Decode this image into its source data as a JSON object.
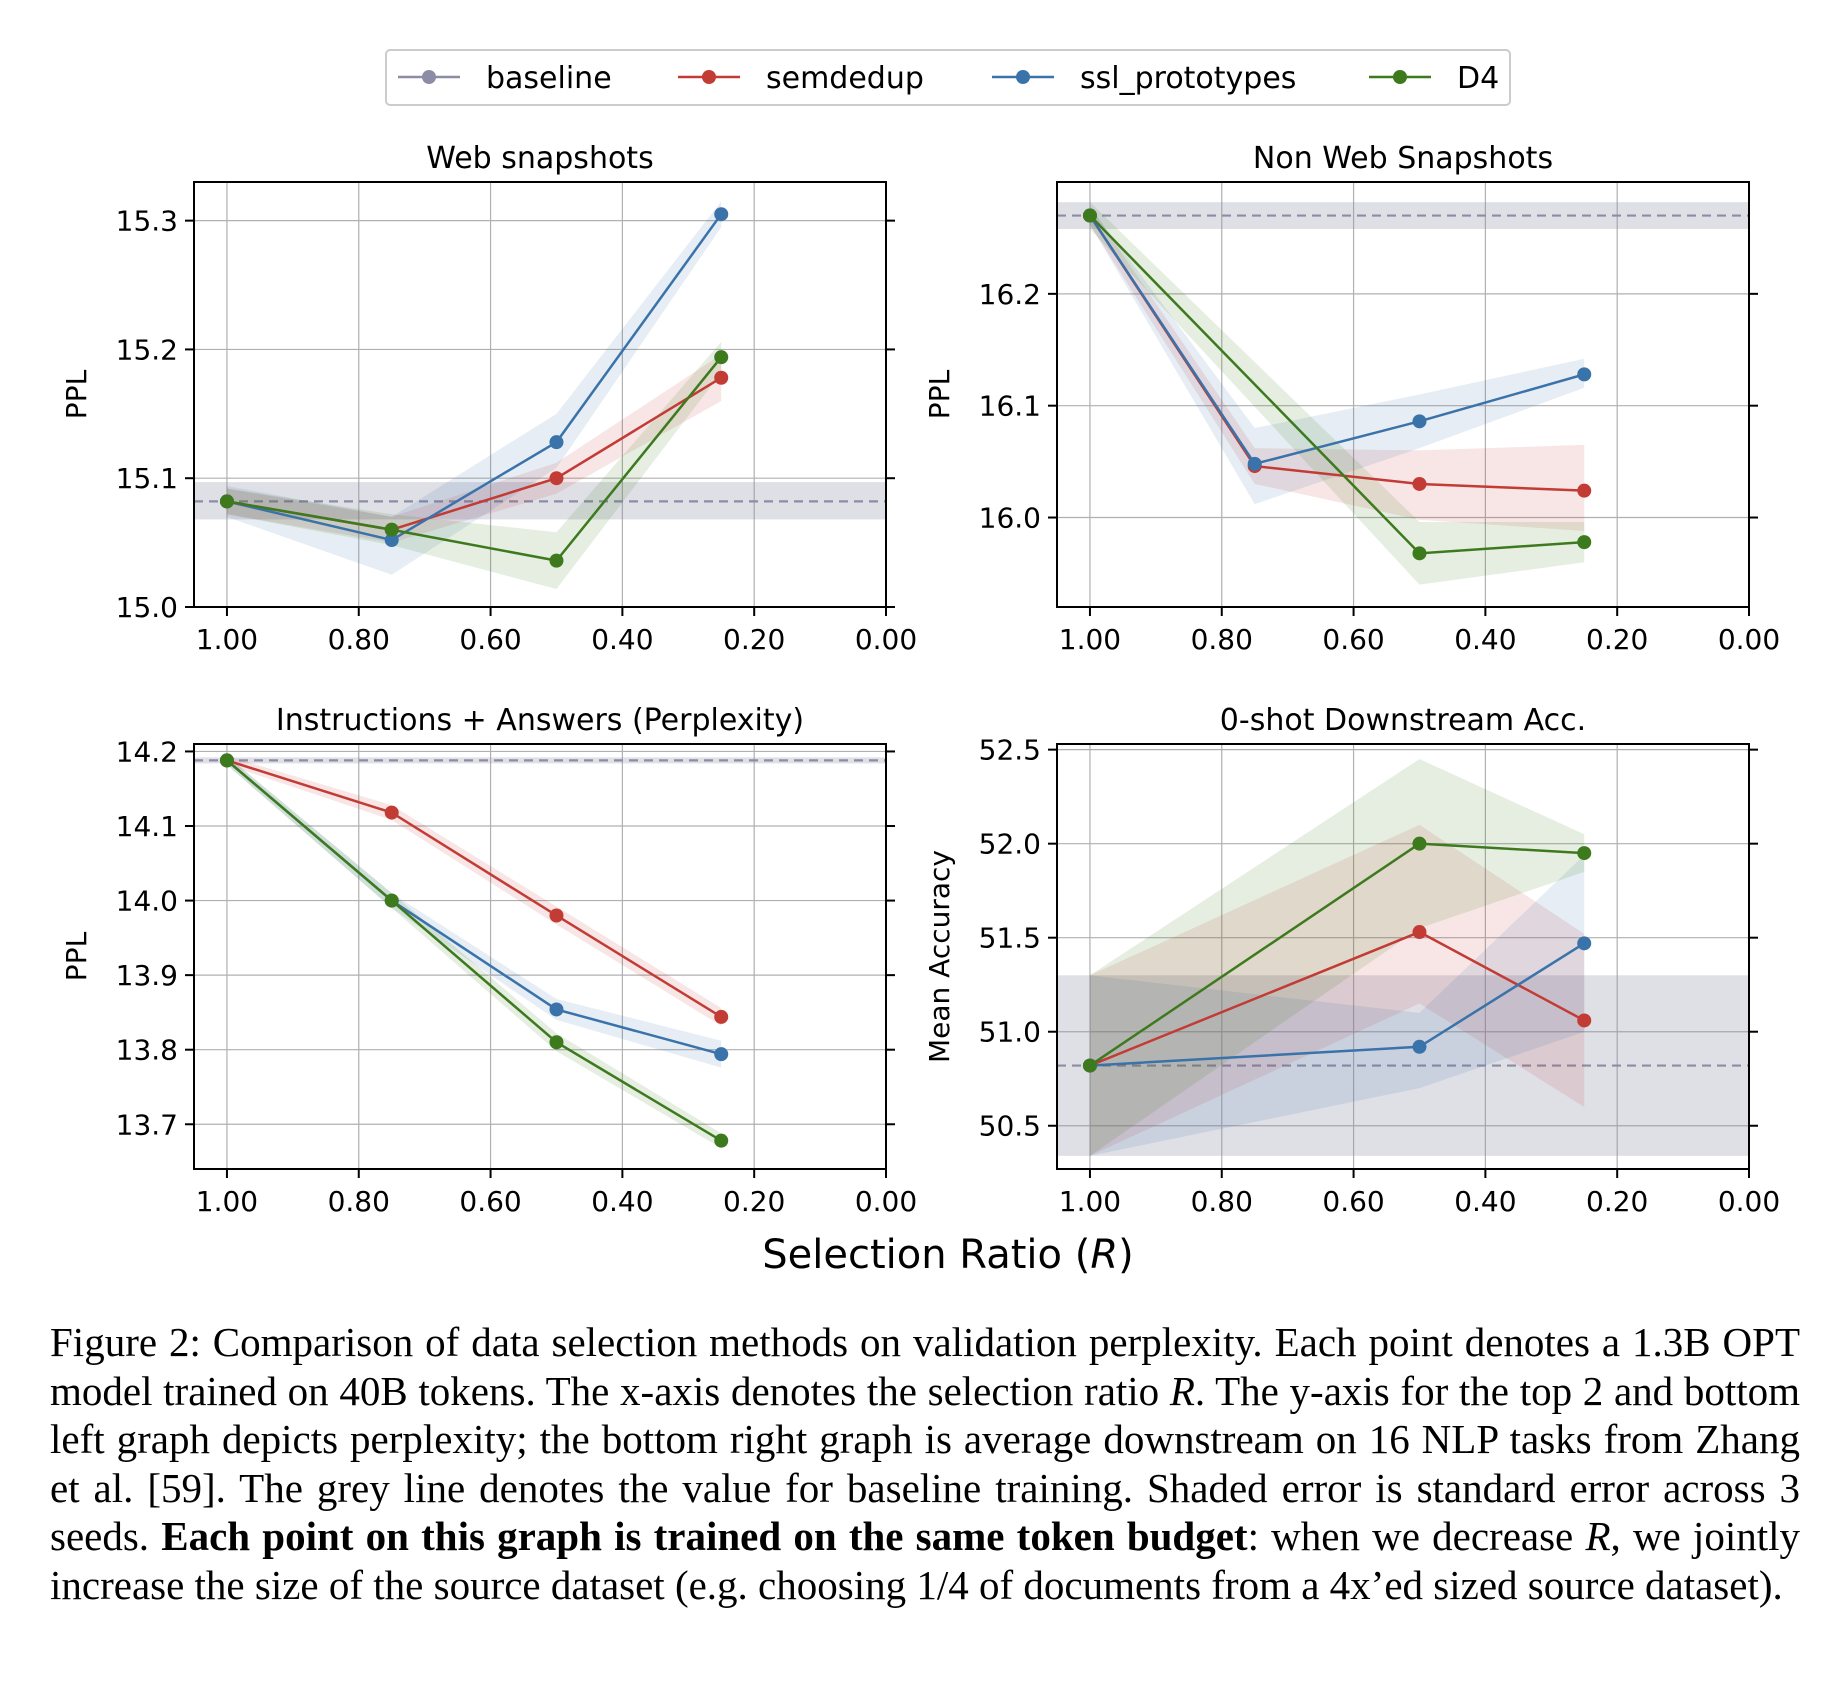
{
  "legend": [
    {
      "name": "baseline",
      "color": "#8c8ca6"
    },
    {
      "name": "semdedup",
      "color": "#c23b35"
    },
    {
      "name": "ssl_prototypes",
      "color": "#3a72aa"
    },
    {
      "name": "D4",
      "color": "#3d7a1e"
    }
  ],
  "xlabel_prefix": "Selection Ratio (",
  "xlabel_var": "R",
  "xlabel_suffix": ")",
  "chart_data": [
    {
      "type": "line",
      "title": "Web snapshots",
      "xlabel": "Selection Ratio (R)",
      "ylabel": "PPL",
      "xlim": [
        1.05,
        0.0
      ],
      "ylim": [
        15.0,
        15.33
      ],
      "xticks": [
        1.0,
        0.8,
        0.6,
        0.4,
        0.2,
        0.0
      ],
      "xtick_labels": [
        "1.00",
        "0.80",
        "0.60",
        "0.40",
        "0.20",
        "0.00"
      ],
      "yticks": [
        15.0,
        15.1,
        15.2,
        15.3
      ],
      "ytick_labels": [
        "15.0",
        "15.1",
        "15.2",
        "15.3"
      ],
      "baseline": {
        "value": 15.082,
        "band": [
          15.068,
          15.097
        ]
      },
      "x": [
        1.0,
        0.75,
        0.5,
        0.25
      ],
      "series": [
        {
          "name": "semdedup",
          "values": [
            15.082,
            15.06,
            15.1,
            15.178
          ],
          "lo": [
            15.072,
            15.05,
            15.088,
            15.16
          ],
          "hi": [
            15.092,
            15.07,
            15.112,
            15.196
          ]
        },
        {
          "name": "ssl_prototypes",
          "values": [
            15.082,
            15.052,
            15.128,
            15.305
          ],
          "lo": [
            15.07,
            15.025,
            15.108,
            15.295
          ],
          "hi": [
            15.094,
            15.07,
            15.15,
            15.315
          ]
        },
        {
          "name": "D4",
          "values": [
            15.082,
            15.06,
            15.036,
            15.194
          ],
          "lo": [
            15.072,
            15.048,
            15.014,
            15.182
          ],
          "hi": [
            15.092,
            15.072,
            15.058,
            15.206
          ]
        }
      ]
    },
    {
      "type": "line",
      "title": "Non Web Snapshots",
      "xlabel": "Selection Ratio (R)",
      "ylabel": "PPL",
      "xlim": [
        1.05,
        0.0
      ],
      "ylim": [
        15.92,
        16.3
      ],
      "xticks": [
        1.0,
        0.8,
        0.6,
        0.4,
        0.2,
        0.0
      ],
      "xtick_labels": [
        "1.00",
        "0.80",
        "0.60",
        "0.40",
        "0.20",
        "0.00"
      ],
      "yticks": [
        16.0,
        16.1,
        16.2
      ],
      "ytick_labels": [
        "16.0",
        "16.1",
        "16.2"
      ],
      "baseline": {
        "value": 16.27,
        "band": [
          16.258,
          16.282
        ]
      },
      "x": [
        1.0,
        0.75,
        0.5,
        0.25
      ],
      "series": [
        {
          "name": "semdedup",
          "values": [
            16.27,
            16.046,
            16.03,
            16.024
          ],
          "lo": [
            16.262,
            16.03,
            15.998,
            15.988
          ],
          "hi": [
            16.278,
            16.062,
            16.06,
            16.065
          ]
        },
        {
          "name": "ssl_prototypes",
          "values": [
            16.27,
            16.048,
            16.086,
            16.128
          ],
          "lo": [
            16.262,
            16.012,
            16.062,
            16.116
          ],
          "hi": [
            16.278,
            16.08,
            16.11,
            16.142
          ]
        },
        {
          "name": "D4",
          "values": [
            16.27,
            null,
            15.968,
            15.978
          ],
          "lo": [
            16.258,
            null,
            15.94,
            15.96
          ],
          "hi": [
            16.282,
            null,
            15.996,
            15.996
          ]
        }
      ]
    },
    {
      "type": "line",
      "title": "Instructions + Answers (Perplexity)",
      "xlabel": "Selection Ratio (R)",
      "ylabel": "PPL",
      "xlim": [
        1.05,
        0.0
      ],
      "ylim": [
        13.64,
        14.21
      ],
      "xticks": [
        1.0,
        0.8,
        0.6,
        0.4,
        0.2,
        0.0
      ],
      "xtick_labels": [
        "1.00",
        "0.80",
        "0.60",
        "0.40",
        "0.20",
        "0.00"
      ],
      "yticks": [
        13.7,
        13.8,
        13.9,
        14.0,
        14.1,
        14.2
      ],
      "ytick_labels": [
        "13.7",
        "13.8",
        "13.9",
        "14.0",
        "14.1",
        "14.2"
      ],
      "baseline": {
        "value": 14.188,
        "band": [
          14.184,
          14.192
        ]
      },
      "x": [
        1.0,
        0.75,
        0.5,
        0.25
      ],
      "series": [
        {
          "name": "semdedup",
          "values": [
            14.188,
            14.118,
            13.98,
            13.844
          ],
          "lo": [
            14.182,
            14.108,
            13.968,
            13.832
          ],
          "hi": [
            14.194,
            14.128,
            13.992,
            13.856
          ]
        },
        {
          "name": "ssl_prototypes",
          "values": [
            14.188,
            14.0,
            13.854,
            13.794
          ],
          "lo": [
            14.182,
            13.99,
            13.84,
            13.776
          ],
          "hi": [
            14.194,
            14.01,
            13.868,
            13.812
          ]
        },
        {
          "name": "D4",
          "values": [
            14.188,
            14.0,
            13.81,
            13.678
          ],
          "lo": [
            14.182,
            13.99,
            13.798,
            13.668
          ],
          "hi": [
            14.194,
            14.01,
            13.822,
            13.688
          ]
        }
      ]
    },
    {
      "type": "line",
      "title": "0-shot Downstream Acc.",
      "xlabel": "Selection Ratio (R)",
      "ylabel": "Mean Accuracy",
      "xlim": [
        1.05,
        0.0
      ],
      "ylim": [
        50.27,
        52.53
      ],
      "xticks": [
        1.0,
        0.8,
        0.6,
        0.4,
        0.2,
        0.0
      ],
      "xtick_labels": [
        "1.00",
        "0.80",
        "0.60",
        "0.40",
        "0.20",
        "0.00"
      ],
      "yticks": [
        50.5,
        51.0,
        51.5,
        52.0,
        52.5
      ],
      "ytick_labels": [
        "50.5",
        "51.0",
        "51.5",
        "52.0",
        "52.5"
      ],
      "baseline": {
        "value": 50.82,
        "band": [
          50.34,
          51.3
        ]
      },
      "x": [
        1.0,
        0.75,
        0.5,
        0.25
      ],
      "series": [
        {
          "name": "semdedup",
          "values": [
            50.82,
            null,
            51.53,
            51.06
          ],
          "lo": [
            50.34,
            null,
            51.15,
            50.6
          ],
          "hi": [
            51.3,
            null,
            52.1,
            51.52
          ]
        },
        {
          "name": "ssl_prototypes",
          "values": [
            50.82,
            null,
            50.92,
            51.47
          ],
          "lo": [
            50.34,
            null,
            50.7,
            51.0
          ],
          "hi": [
            51.3,
            null,
            51.1,
            51.94
          ]
        },
        {
          "name": "D4",
          "values": [
            50.82,
            null,
            52.0,
            51.95
          ],
          "lo": [
            50.34,
            null,
            51.55,
            51.85
          ],
          "hi": [
            51.3,
            null,
            52.45,
            52.05
          ]
        }
      ]
    }
  ],
  "caption": {
    "p1": "Figure 2: Comparison of data selection methods on validation perplexity. Each point denotes a 1.3B OPT model trained on 40B tokens. The x-axis denotes the selection ratio ",
    "var1": "R",
    "p2": ". The y-axis for the top 2 and bottom left graph depicts perplexity; the bottom right graph is average downstream on 16 NLP tasks from Zhang et al. [59]. The grey line denotes the value for baseline training. Shaded error is standard error across 3 seeds. ",
    "bold": "Each point on this graph is trained on the same token budget",
    "p3": ": when we decrease ",
    "var2": "R",
    "p4": ", we jointly increase the size of the source dataset (e.g. choosing 1/4 of documents from a 4x’ed sized source dataset)."
  }
}
